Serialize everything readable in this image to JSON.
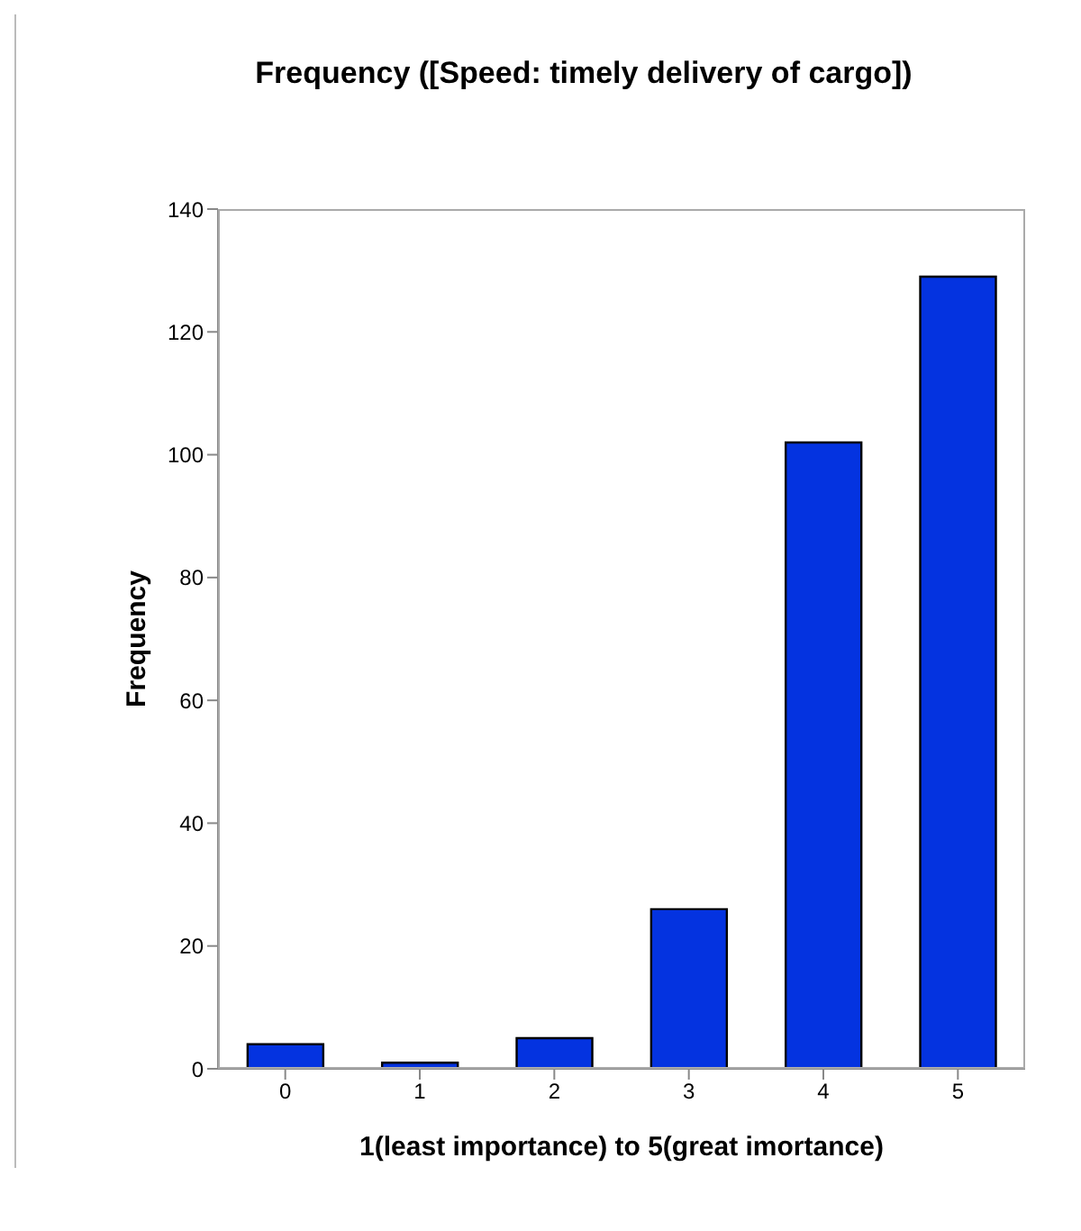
{
  "chart_data": {
    "type": "bar",
    "title": "Frequency ([Speed: timely delivery of cargo])",
    "xlabel": "1(least importance) to 5(great imortance)",
    "ylabel": "Frequency",
    "categories": [
      "0",
      "1",
      "2",
      "3",
      "4",
      "5"
    ],
    "values": [
      4,
      1,
      5,
      26,
      102,
      129
    ],
    "color": "#0433e0",
    "ylim": [
      0,
      140
    ],
    "yticks": [
      0,
      20,
      40,
      60,
      80,
      100,
      120,
      140
    ],
    "grid": false,
    "legend": false
  }
}
